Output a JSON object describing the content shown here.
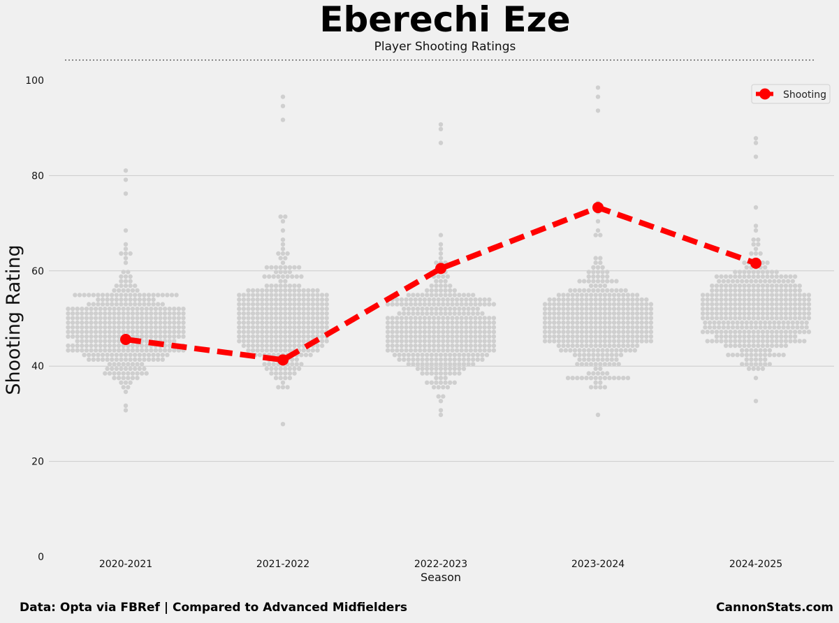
{
  "chart_data": {
    "type": "scatter",
    "title": "Eberechi Eze",
    "subtitle": "Player Shooting Ratings",
    "xlabel": "Season",
    "ylabel": "Shooting Rating",
    "ylim": [
      0,
      100
    ],
    "yticks": [
      "0",
      "20",
      "40",
      "60",
      "80",
      "100"
    ],
    "categories": [
      "2020-2021",
      "2021-2022",
      "2022-2023",
      "2023-2024",
      "2024-2025"
    ],
    "grid": true,
    "legend_position": "top-right",
    "series": [
      {
        "name": "Shooting",
        "kind": "line",
        "style": "dashed",
        "marker": "circle",
        "color": "#ff0000",
        "values": [
          45.6,
          41.3,
          60.5,
          73.3,
          61.6
        ]
      }
    ],
    "background_distribution": {
      "description": "",
      "color": "#cfcfcf",
      "per_season": [
        {
          "min": 30.5,
          "max": 81.0,
          "center": 47.0,
          "width": 85
        },
        {
          "min": 28.0,
          "max": 96.5,
          "center": 49.0,
          "width": 64
        },
        {
          "min": 29.8,
          "max": 91.0,
          "center": 47.0,
          "width": 78
        },
        {
          "min": 29.5,
          "max": 98.0,
          "center": 48.5,
          "width": 77
        },
        {
          "min": 33.0,
          "max": 88.0,
          "center": 51.0,
          "width": 77
        }
      ]
    }
  },
  "footer_left": "Data: Opta via FBRef | Compared to Advanced Midfielders",
  "footer_right": "CannonStats.com",
  "colors": {
    "background": "#f0f0f0",
    "gridline": "#cbcbcb",
    "dots": "#cfcfcf",
    "line": "#ff0000"
  }
}
